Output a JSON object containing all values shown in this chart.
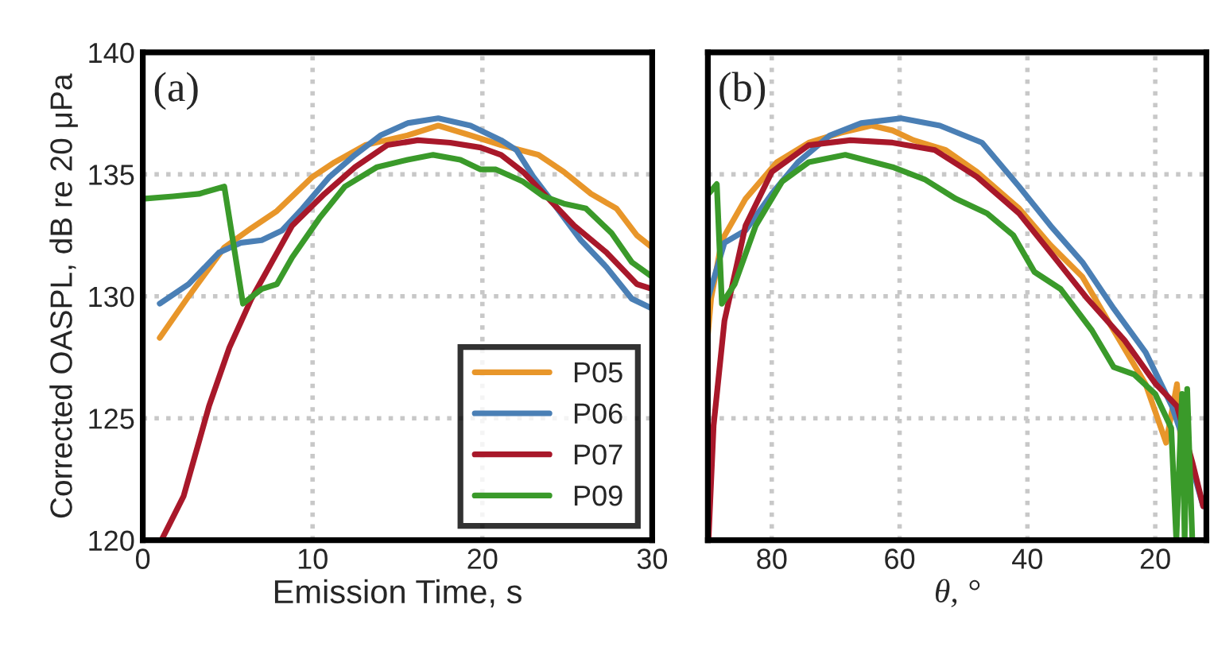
{
  "chart_data": [
    {
      "type": "line",
      "xlabel": "Emission Time, s",
      "ylabel": "Corrected OASPL, dB re 20 μPa",
      "annotations": [
        "(a)"
      ],
      "xlim": [
        0,
        30
      ],
      "xticks": [
        0,
        10,
        20,
        30
      ],
      "ylim": [
        120,
        140
      ],
      "yticks": [
        120,
        125,
        130,
        135,
        140
      ],
      "grid": true,
      "legend": "bottom right",
      "line_style": "solid",
      "series": [
        {
          "name": "P05",
          "color": "#e8962a",
          "x": [
            1,
            2.7,
            4.8,
            6.4,
            7.9,
            10,
            11.3,
            13.1,
            15.6,
            17.4,
            19.3,
            21.1,
            23.3,
            24.8,
            26.4,
            27.9,
            29.1,
            30
          ],
          "values": [
            128.3,
            130,
            132,
            132.8,
            133.5,
            134.9,
            135.5,
            136.2,
            136.6,
            137,
            136.6,
            136.2,
            135.8,
            135.1,
            134.2,
            133.6,
            132.5,
            132
          ]
        },
        {
          "name": "P06",
          "color": "#4a7fb5",
          "x": [
            1,
            2.7,
            4.5,
            5.8,
            7,
            8.2,
            9.4,
            11,
            12.5,
            14,
            15.6,
            17.4,
            19.3,
            21.1,
            22,
            23,
            24.2,
            25.8,
            27.3,
            28.8,
            30
          ],
          "values": [
            129.7,
            130.5,
            131.8,
            132.2,
            132.3,
            132.7,
            133.6,
            134.9,
            135.8,
            136.6,
            137.1,
            137.3,
            137,
            136.4,
            136,
            134.9,
            133.8,
            132.3,
            131.2,
            129.9,
            129.5
          ]
        },
        {
          "name": "P07",
          "color": "#a8182a",
          "x": [
            1.1,
            2.4,
            3.9,
            5.1,
            6.4,
            7.6,
            8.8,
            10.7,
            12.5,
            14.4,
            16.2,
            18.1,
            19.9,
            21.1,
            22.4,
            23.9,
            25.4,
            27.3,
            29.1,
            30
          ],
          "values": [
            120,
            121.8,
            125.5,
            127.9,
            129.9,
            131.4,
            132.9,
            134.2,
            135.3,
            136.2,
            136.4,
            136.3,
            136.1,
            135.8,
            135.1,
            134,
            132.9,
            131.8,
            130.5,
            130.3
          ]
        },
        {
          "name": "P09",
          "color": "#3a9a2a",
          "x": [
            0,
            1.8,
            3.3,
            4.8,
            5.9,
            7,
            7.9,
            8.8,
            10.4,
            11.9,
            13.8,
            15.6,
            17.1,
            18.7,
            19.9,
            20.8,
            22.4,
            23.6,
            24.8,
            26.1,
            27.6,
            28.8,
            30
          ],
          "values": [
            134,
            134.1,
            134.2,
            134.5,
            129.7,
            130.3,
            130.5,
            131.6,
            133.2,
            134.5,
            135.3,
            135.6,
            135.8,
            135.6,
            135.2,
            135.2,
            134.7,
            134.1,
            133.8,
            133.6,
            132.6,
            131.4,
            130.8
          ]
        }
      ]
    },
    {
      "type": "line",
      "xlabel": "θ, °",
      "annotations": [
        "(b)"
      ],
      "xlim": [
        90,
        12
      ],
      "xticks": [
        80,
        60,
        40,
        20
      ],
      "ylim": [
        120,
        140
      ],
      "yticks": [
        120,
        125,
        130,
        135,
        140
      ],
      "tick_labels": "x",
      "grid": true,
      "line_style": "solid",
      "series": [
        {
          "color": "#e8962a",
          "x": [
            90,
            89.5,
            87.8,
            84.1,
            79.2,
            74.2,
            69.3,
            64.4,
            61.1,
            57.8,
            52.8,
            47.9,
            41.3,
            36.4,
            31.4,
            26.5,
            21.5,
            18.3,
            16.6,
            15.8
          ],
          "values": [
            128.4,
            129.9,
            132.3,
            134,
            135.5,
            136.3,
            136.7,
            137,
            136.8,
            136.4,
            136,
            135.1,
            133.6,
            132.1,
            130.8,
            128.6,
            126.4,
            124,
            126.4,
            123.2
          ]
        },
        {
          "color": "#4a7fb5",
          "x": [
            90,
            87.4,
            84.1,
            80,
            75.9,
            70.9,
            66,
            59.8,
            53.7,
            47.1,
            41.3,
            36.4,
            31.4,
            26.5,
            21.5,
            17.4,
            14.9,
            12.5
          ],
          "values": [
            129.9,
            132.2,
            132.7,
            134.2,
            135.5,
            136.6,
            137.1,
            137.3,
            137,
            136.3,
            134.5,
            132.9,
            131.4,
            129.5,
            127.7,
            125.5,
            123.6,
            121.4
          ]
        },
        {
          "color": "#a8182a",
          "x": [
            89.9,
            89.1,
            87.4,
            84.1,
            80,
            74.2,
            67.7,
            61.1,
            54.5,
            47.9,
            41.3,
            36.4,
            30.6,
            24.8,
            19.9,
            16.6,
            14.2,
            12.5
          ],
          "values": [
            120,
            124.7,
            129,
            132.9,
            135.1,
            136.2,
            136.4,
            136.3,
            136,
            134.9,
            133.4,
            131.8,
            129.9,
            128.2,
            126.4,
            125.5,
            123.2,
            121.4
          ]
        },
        {
          "color": "#3a9a2a",
          "x": [
            89.9,
            88.6,
            87.8,
            85.8,
            82.5,
            78.4,
            74.2,
            68.5,
            61.1,
            56.1,
            51.2,
            46.3,
            42.2,
            38.9,
            34.8,
            29.9,
            26.5,
            23.3,
            20,
            17.5,
            16.7,
            15.8,
            15.4,
            15,
            14.2
          ],
          "values": [
            134.2,
            134.6,
            129.7,
            130.5,
            132.9,
            134.7,
            135.5,
            135.8,
            135.3,
            134.8,
            134,
            133.4,
            132.5,
            131,
            130.3,
            128.6,
            127.1,
            126.8,
            126,
            124.6,
            120,
            126,
            120,
            126.2,
            120
          ]
        }
      ]
    }
  ]
}
